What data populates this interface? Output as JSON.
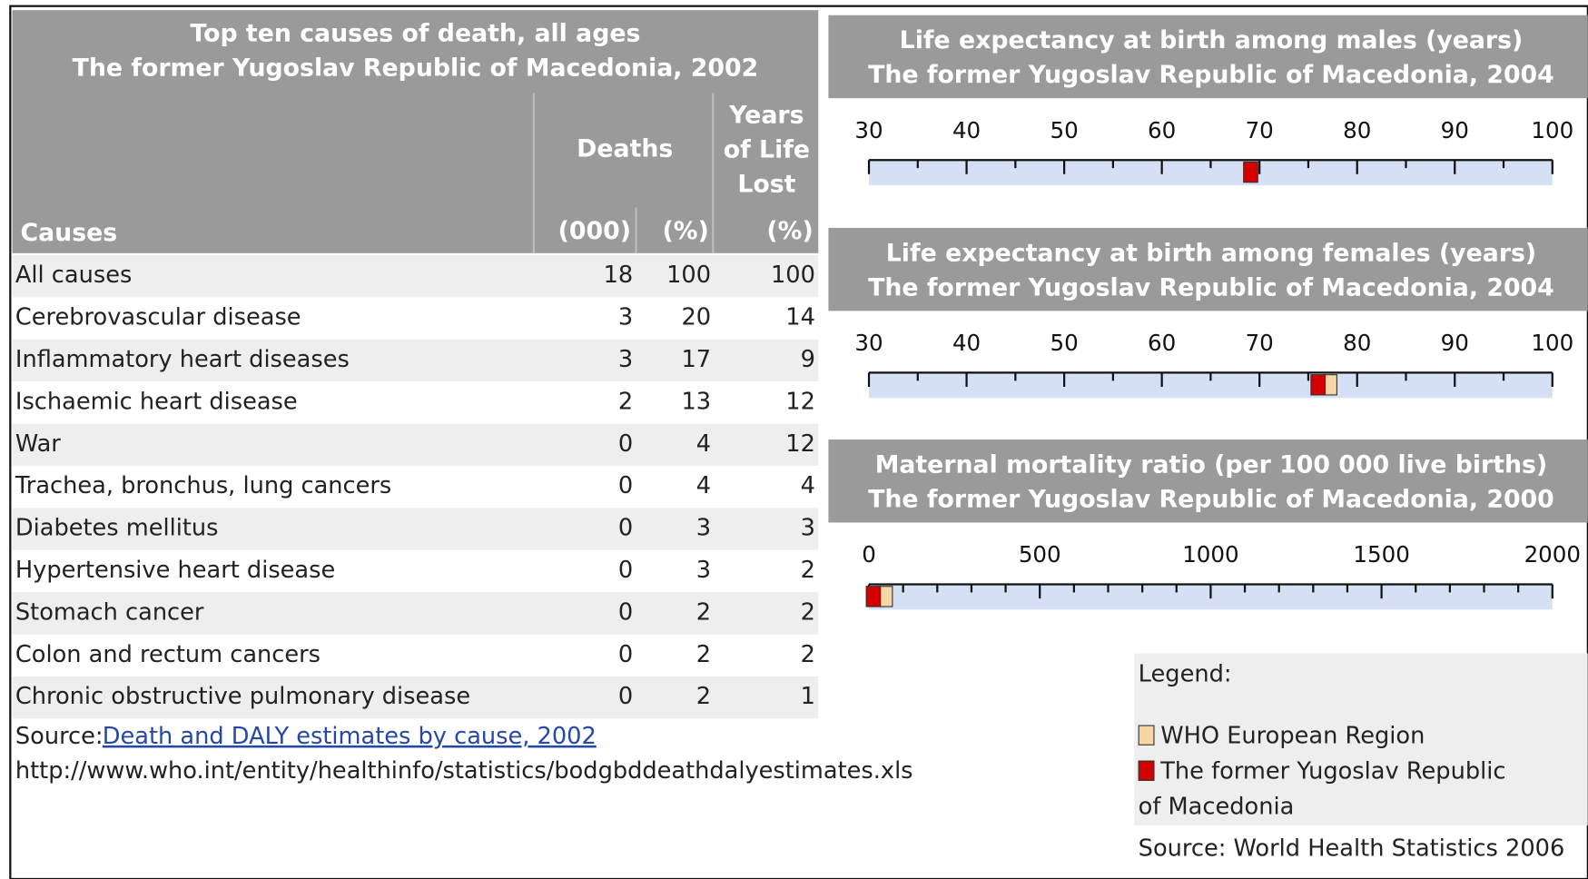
{
  "table": {
    "title": [
      "Top ten causes of death, all ages",
      "The former Yugoslav Republic of Macedonia, 2002"
    ],
    "headers": {
      "causes": "Causes",
      "deaths": "Deaths",
      "deaths_000": "(000)",
      "deaths_pct": "(%)",
      "yll": [
        "Years",
        "of Life",
        "Lost"
      ],
      "yll_pct": "(%)"
    },
    "rows": [
      [
        "All causes",
        18,
        100,
        100
      ],
      [
        "Cerebrovascular disease",
        3,
        20,
        14
      ],
      [
        "Inflammatory heart diseases",
        3,
        17,
        9
      ],
      [
        "Ischaemic heart disease",
        2,
        13,
        12
      ],
      [
        "War",
        0,
        4,
        12
      ],
      [
        "Trachea, bronchus, lung cancers",
        0,
        4,
        4
      ],
      [
        "Diabetes mellitus",
        0,
        3,
        3
      ],
      [
        "Hypertensive heart disease",
        0,
        3,
        2
      ],
      [
        "Stomach cancer",
        0,
        2,
        2
      ],
      [
        "Colon and rectum cancers",
        0,
        2,
        2
      ],
      [
        "Chronic obstructive pulmonary disease",
        0,
        2,
        1
      ]
    ],
    "source": {
      "label": "Source:",
      "link": "Death and DALY estimates by cause, 2002",
      "url": "http://www.who.int/entity/healthinfo/statistics/bodgbddeathdalyestimates.xls"
    }
  },
  "chart_data": [
    {
      "type": "scale",
      "title": [
        "Life expectancy at birth among males (years)",
        "The former Yugoslav Republic of Macedonia, 2004"
      ],
      "xlim": [
        30,
        100
      ],
      "xticks": [
        30,
        40,
        50,
        60,
        70,
        80,
        90,
        100
      ],
      "xminor": [
        35,
        45,
        55,
        65,
        75,
        85,
        95
      ],
      "series": [
        {
          "name": "The former Yugoslav Republic of Macedonia",
          "color": "#d40000",
          "values": [
            69.1
          ]
        }
      ]
    },
    {
      "type": "scale",
      "title": [
        "Life expectancy at birth among females (years)",
        "The former Yugoslav Republic of Macedonia, 2004"
      ],
      "xlim": [
        30,
        100
      ],
      "xticks": [
        30,
        40,
        50,
        60,
        70,
        80,
        90,
        100
      ],
      "xminor": [
        35,
        45,
        55,
        65,
        75,
        85,
        95
      ],
      "series": [
        {
          "name": "WHO European Region",
          "color": "#f7d6a6",
          "values": [
            77.2
          ]
        },
        {
          "name": "The former Yugoslav Republic of Macedonia",
          "color": "#d40000",
          "values": [
            76
          ]
        }
      ]
    },
    {
      "type": "scale",
      "title": [
        "Maternal mortality ratio (per 100 000 live births)",
        "The former Yugoslav Republic of Macedonia, 2000"
      ],
      "xlim": [
        0,
        2000
      ],
      "xticks": [
        0,
        500,
        1000,
        1500,
        2000
      ],
      "xminor": [
        100,
        200,
        300,
        400,
        600,
        700,
        800,
        900,
        1100,
        1200,
        1300,
        1400,
        1600,
        1700,
        1800,
        1900
      ],
      "series": [
        {
          "name": "WHO European Region",
          "color": "#f7d6a6",
          "values": [
            48
          ]
        },
        {
          "name": "The former Yugoslav Republic of Macedonia",
          "color": "#d40000",
          "values": [
            13
          ]
        }
      ]
    }
  ],
  "legend": {
    "title": "Legend:",
    "source": "Source: World Health Statistics 2006"
  }
}
